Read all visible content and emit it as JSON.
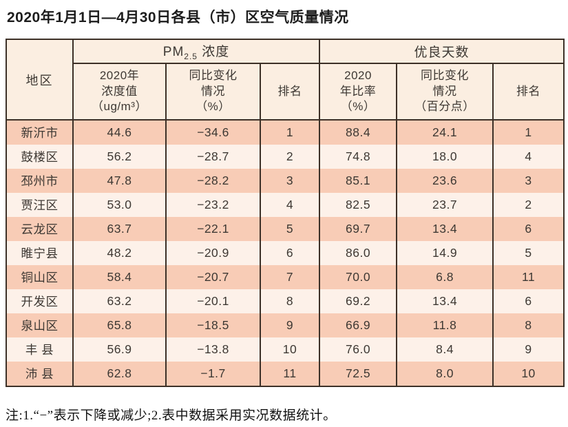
{
  "title": "2020年1月1日—4月30日各县（市）区空气质量情况",
  "table": {
    "region_header": "地区",
    "pm_group": {
      "prefix": "PM",
      "sub": "2.5",
      "suffix": " 浓度"
    },
    "good_group": "优良天数",
    "sub_headers": {
      "pm_value": "2020年\n浓度值\n（ug/m³）",
      "pm_change": "同比变化\n情况\n（%）",
      "pm_rank": "排名",
      "good_rate": "2020\n年比率\n（%）",
      "good_change": "同比变化\n情况\n（百分点）",
      "good_rank": "排名"
    },
    "rows": [
      {
        "region": "新沂市",
        "pm_value": "44.6",
        "pm_change": "−34.6",
        "pm_rank": "1",
        "good_rate": "88.4",
        "good_change": "24.1",
        "good_rank": "1"
      },
      {
        "region": "鼓楼区",
        "pm_value": "56.2",
        "pm_change": "−28.7",
        "pm_rank": "2",
        "good_rate": "74.8",
        "good_change": "18.0",
        "good_rank": "4"
      },
      {
        "region": "邳州市",
        "pm_value": "47.8",
        "pm_change": "−28.2",
        "pm_rank": "3",
        "good_rate": "85.1",
        "good_change": "23.6",
        "good_rank": "3"
      },
      {
        "region": "贾汪区",
        "pm_value": "53.0",
        "pm_change": "−23.2",
        "pm_rank": "4",
        "good_rate": "82.5",
        "good_change": "23.7",
        "good_rank": "2"
      },
      {
        "region": "云龙区",
        "pm_value": "63.7",
        "pm_change": "−22.1",
        "pm_rank": "5",
        "good_rate": "69.7",
        "good_change": "13.4",
        "good_rank": "6"
      },
      {
        "region": "睢宁县",
        "pm_value": "48.2",
        "pm_change": "−20.9",
        "pm_rank": "6",
        "good_rate": "86.0",
        "good_change": "14.9",
        "good_rank": "5"
      },
      {
        "region": "铜山区",
        "pm_value": "58.4",
        "pm_change": "−20.7",
        "pm_rank": "7",
        "good_rate": "70.0",
        "good_change": "6.8",
        "good_rank": "11"
      },
      {
        "region": "开发区",
        "pm_value": "63.2",
        "pm_change": "−20.1",
        "pm_rank": "8",
        "good_rate": "69.2",
        "good_change": "13.4",
        "good_rank": "6"
      },
      {
        "region": "泉山区",
        "pm_value": "65.8",
        "pm_change": "−18.5",
        "pm_rank": "9",
        "good_rate": "66.9",
        "good_change": "11.8",
        "good_rank": "8"
      },
      {
        "region": "丰 县",
        "pm_value": "56.9",
        "pm_change": "−13.8",
        "pm_rank": "10",
        "good_rate": "76.0",
        "good_change": "8.4",
        "good_rank": "9"
      },
      {
        "region": "沛 县",
        "pm_value": "62.8",
        "pm_change": "−1.7",
        "pm_rank": "11",
        "good_rate": "72.5",
        "good_change": "8.0",
        "good_rank": "10"
      }
    ]
  },
  "note": "注:1.“−”表示下降或减少;2.表中数据采用实况数据统计。",
  "colors": {
    "border": "#3c3027",
    "header_bg": "#fbeee1",
    "row_odd_bg": "#f8ccb6",
    "row_even_bg": "#fdf1e9",
    "cell_text": "#3d3833"
  }
}
